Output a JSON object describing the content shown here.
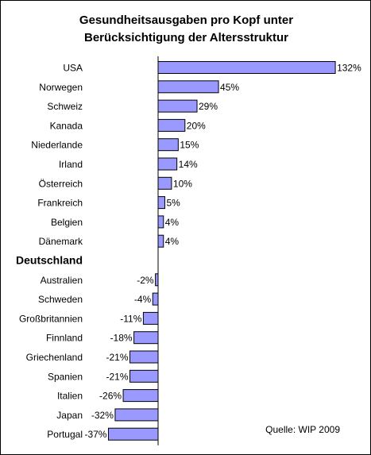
{
  "colors": {
    "bar_fill": "#9999ff",
    "bar_stroke": "#000000",
    "axis": "#000000",
    "background": "#ffffff"
  },
  "chart_data": {
    "type": "bar",
    "orientation": "horizontal",
    "title": "Gesundheitsausgaben pro Kopf unter Berücksichtigung der Altersstruktur",
    "title_lines": [
      "Gesundheitsausgaben pro Kopf unter",
      "Berücksichtigung der Altersstruktur"
    ],
    "value_unit": "%",
    "xlim": [
      -37,
      132
    ],
    "grid": false,
    "legend": "none",
    "baseline_category": "Deutschland",
    "categories": [
      "USA",
      "Norwegen",
      "Schweiz",
      "Kanada",
      "Niederlande",
      "Irland",
      "Österreich",
      "Frankreich",
      "Belgien",
      "Dänemark",
      "Deutschland",
      "Australien",
      "Schweden",
      "Großbritannien",
      "Finnland",
      "Griechenland",
      "Spanien",
      "Italien",
      "Japan",
      "Portugal"
    ],
    "values": [
      132,
      45,
      29,
      20,
      15,
      14,
      10,
      5,
      4,
      4,
      null,
      -2,
      -4,
      -11,
      -18,
      -21,
      -21,
      -26,
      -32,
      -37
    ],
    "value_labels": [
      "132%",
      "45%",
      "29%",
      "20%",
      "15%",
      "14%",
      "10%",
      "5%",
      "4%",
      "4%",
      "",
      "-2%",
      "-4%",
      "-11%",
      "-18%",
      "-21%",
      "-21%",
      "-26%",
      "-32%",
      "-37%"
    ],
    "source": "Quelle: WIP 2009"
  }
}
